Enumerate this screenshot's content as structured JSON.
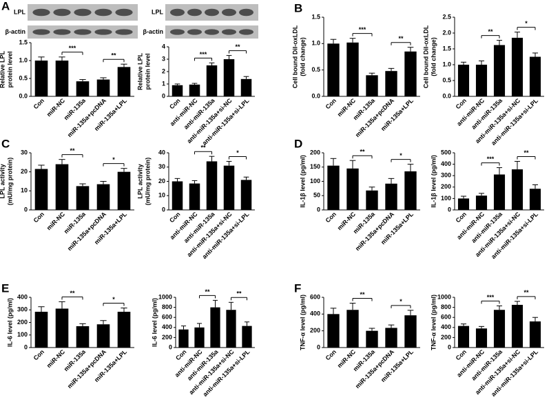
{
  "chart_data": [
    {
      "type": "bar",
      "panel": "A",
      "blot_labels": [
        "LPL",
        "β-actin"
      ],
      "ylabel": [
        "Relative LPL",
        "protein level"
      ],
      "categories": [
        "Con",
        "miR-NC",
        "miR-135a",
        "miR-135a+pcDNA",
        "miR-135a+LPL"
      ],
      "values": [
        1.0,
        1.0,
        0.42,
        0.47,
        0.82
      ],
      "errors": [
        0.1,
        0.1,
        0.05,
        0.05,
        0.08
      ],
      "ylim": [
        0,
        1.5
      ],
      "yticks": [
        {
          "value": 0,
          "label": "0.0"
        },
        0.5,
        {
          "value": 1,
          "label": "1.0"
        },
        1.5
      ],
      "annotations": [
        {
          "label": "***",
          "between": [
            "miR-NC",
            "miR-135a"
          ]
        },
        {
          "label": "**",
          "between": [
            "miR-135a+pcDNA",
            "miR-135a+LPL"
          ]
        }
      ],
      "color": "#000000"
    },
    {
      "type": "bar",
      "blot_labels": [
        "LPL",
        "β-actin"
      ],
      "ylabel": [
        "Relative LPL",
        "protein level"
      ],
      "categories": [
        "Con",
        "anti-miR-NC",
        "anti-miR-135a",
        "anti-miR-135a+si-NC",
        "anti-miR-135a+si-LPL"
      ],
      "values": [
        0.9,
        0.95,
        2.5,
        3.0,
        1.4
      ],
      "errors": [
        0.1,
        0.1,
        0.2,
        0.3,
        0.2
      ],
      "ylim": [
        0,
        4
      ],
      "yticks": [
        0,
        1,
        2,
        3,
        4
      ],
      "annotations": [
        {
          "label": "***",
          "between": [
            "anti-miR-NC",
            "anti-miR-135a"
          ]
        },
        {
          "label": "**",
          "between": [
            "anti-miR-135a+si-NC",
            "anti-miR-135a+si-LPL"
          ]
        }
      ],
      "color": "#000000"
    },
    {
      "type": "bar",
      "panel": "B",
      "ylabel": [
        "Cell bound DiI-oxLDL",
        "(fold change)"
      ],
      "categories": [
        "Con",
        "miR-NC",
        "miR-135a",
        "miR-135a+pcDNA",
        "miR-135a+LPL"
      ],
      "values": [
        1.0,
        1.02,
        0.4,
        0.48,
        0.85
      ],
      "errors": [
        0.08,
        0.08,
        0.04,
        0.05,
        0.08
      ],
      "ylim": [
        0,
        1.5
      ],
      "yticks": [
        {
          "value": 0,
          "label": "0.0"
        },
        0.5,
        {
          "value": 1,
          "label": "1.0"
        },
        1.5
      ],
      "annotations": [
        {
          "label": "***",
          "between": [
            "miR-NC",
            "miR-135a"
          ]
        },
        {
          "label": "**",
          "between": [
            "miR-135a+pcDNA",
            "miR-135a+LPL"
          ]
        }
      ],
      "color": "#000000"
    },
    {
      "type": "bar",
      "ylabel": [
        "Cell bound DiI-oxLDL",
        "(fold change)"
      ],
      "categories": [
        "Con",
        "anti-miR-NC",
        "anti-miR-135a",
        "anti-miR-135a+si-NC",
        "anti-miR-135a+si-LPL"
      ],
      "values": [
        1.0,
        1.0,
        1.62,
        1.85,
        1.25
      ],
      "errors": [
        0.08,
        0.12,
        0.15,
        0.18,
        0.12
      ],
      "ylim": [
        0,
        2.5
      ],
      "yticks": [
        {
          "value": 0,
          "label": "0.0"
        },
        0.5,
        {
          "value": 1,
          "label": "1.0"
        },
        1.5,
        {
          "value": 2,
          "label": "2.0"
        },
        2.5
      ],
      "annotations": [
        {
          "label": "**",
          "between": [
            "anti-miR-NC",
            "anti-miR-135a"
          ]
        },
        {
          "label": "*",
          "between": [
            "anti-miR-135a+si-NC",
            "anti-miR-135a+si-LPL"
          ]
        }
      ],
      "color": "#000000"
    },
    {
      "type": "bar",
      "panel": "C",
      "ylabel": [
        "LPL activity",
        "(mU/mg protein)"
      ],
      "categories": [
        "Con",
        "miR-NC",
        "miR-135a",
        "miR-135a+pcDNA",
        "miR-135a+LPL"
      ],
      "values": [
        21.5,
        24,
        12.5,
        13.5,
        20
      ],
      "errors": [
        2,
        2.5,
        1.2,
        1.5,
        1.8
      ],
      "ylim": [
        0,
        30
      ],
      "yticks": [
        0,
        10,
        20,
        30
      ],
      "annotations": [
        {
          "label": "**",
          "between": [
            "miR-NC",
            "miR-135a"
          ]
        },
        {
          "label": "*",
          "between": [
            "miR-135a+pcDNA",
            "miR-135a+LPL"
          ]
        }
      ],
      "color": "#000000"
    },
    {
      "type": "bar",
      "ylabel": [
        "LPL activity",
        "(mU/mg protein)"
      ],
      "categories": [
        "Con",
        "anti-miR-NC",
        "anti-miR-135a",
        "anti-miR-135a+si-NC",
        "anti-miR-135a+si-LPL"
      ],
      "values": [
        20,
        18.5,
        34,
        31,
        21
      ],
      "errors": [
        2,
        2,
        3.5,
        3,
        2
      ],
      "ylim": [
        0,
        40
      ],
      "yticks": [
        0,
        10,
        20,
        30,
        40
      ],
      "annotations": [
        {
          "label": "**",
          "between": [
            "anti-miR-NC",
            "anti-miR-135a"
          ]
        },
        {
          "label": "*",
          "between": [
            "anti-miR-135a+si-NC",
            "anti-miR-135a+si-LPL"
          ]
        }
      ],
      "color": "#000000"
    },
    {
      "type": "bar",
      "panel": "D",
      "ylabel": [
        "IL-1β level (pg/ml)"
      ],
      "categories": [
        "Con",
        "miR-NC",
        "miR-135a",
        "miR-135a+pcDNA",
        "miR-135a+LPL"
      ],
      "values": [
        155,
        145,
        68,
        92,
        135
      ],
      "errors": [
        25,
        28,
        12,
        18,
        25
      ],
      "ylim": [
        0,
        200
      ],
      "yticks": [
        0,
        50,
        100,
        150,
        200
      ],
      "annotations": [
        {
          "label": "**",
          "between": [
            "miR-NC",
            "miR-135a"
          ]
        },
        {
          "label": "*",
          "between": [
            "miR-135a+pcDNA",
            "miR-135a+LPL"
          ]
        }
      ],
      "color": "#000000"
    },
    {
      "type": "bar",
      "ylabel": [
        "IL-1β level (pg/ml)"
      ],
      "categories": [
        "Con",
        "anti-miR-NC",
        "anti-miR-135a",
        "anti-miR-135a+si-NC",
        "anti-miR-135a+si-LPL"
      ],
      "values": [
        100,
        125,
        310,
        355,
        185
      ],
      "errors": [
        20,
        20,
        60,
        70,
        35
      ],
      "ylim": [
        0,
        500
      ],
      "yticks": [
        0,
        100,
        200,
        300,
        400,
        500
      ],
      "annotations": [
        {
          "label": "***",
          "between": [
            "anti-miR-NC",
            "anti-miR-135a"
          ]
        },
        {
          "label": "**",
          "between": [
            "anti-miR-135a+si-NC",
            "anti-miR-135a+si-LPL"
          ]
        }
      ],
      "color": "#000000"
    },
    {
      "type": "bar",
      "panel": "E",
      "ylabel": [
        "IL-6 level (pg/ml)"
      ],
      "categories": [
        "Con",
        "miR-NC",
        "miR-135a",
        "miR-135a+pcDNA",
        "miR-135a+LPL"
      ],
      "values": [
        285,
        310,
        170,
        185,
        285
      ],
      "errors": [
        40,
        55,
        20,
        30,
        30
      ],
      "ylim": [
        0,
        400
      ],
      "yticks": [
        0,
        100,
        200,
        300,
        400
      ],
      "annotations": [
        {
          "label": "**",
          "between": [
            "miR-NC",
            "miR-135a"
          ]
        },
        {
          "label": "*",
          "between": [
            "miR-135a+pcDNA",
            "miR-135a+LPL"
          ]
        }
      ],
      "color": "#000000"
    },
    {
      "type": "bar",
      "ylabel": [
        "IL-6 level (pg/ml)"
      ],
      "categories": [
        "Con",
        "anti-miR-NC",
        "anti-miR-135a",
        "anti-miR-135a+si-NC",
        "anti-miR-135a+si-LPL"
      ],
      "values": [
        360,
        400,
        800,
        750,
        430
      ],
      "errors": [
        70,
        80,
        140,
        150,
        80
      ],
      "ylim": [
        0,
        1000
      ],
      "yticks": [
        0,
        200,
        400,
        600,
        800,
        1000
      ],
      "annotations": [
        {
          "label": "**",
          "between": [
            "anti-miR-NC",
            "anti-miR-135a"
          ]
        },
        {
          "label": "**",
          "between": [
            "anti-miR-135a+si-NC",
            "anti-miR-135a+si-LPL"
          ]
        }
      ],
      "color": "#000000"
    },
    {
      "type": "bar",
      "panel": "F",
      "ylabel": [
        "TNF-α level (pg/ml)"
      ],
      "categories": [
        "Con",
        "miR-NC",
        "miR-135a",
        "miR-135a+pcDNA",
        "miR-135a+LPL"
      ],
      "values": [
        400,
        450,
        200,
        235,
        385
      ],
      "errors": [
        70,
        80,
        30,
        35,
        60
      ],
      "ylim": [
        0,
        600
      ],
      "yticks": [
        0,
        200,
        400,
        600
      ],
      "annotations": [
        {
          "label": "**",
          "between": [
            "miR-NC",
            "miR-135a"
          ]
        },
        {
          "label": "*",
          "between": [
            "miR-135a+pcDNA",
            "miR-135a+LPL"
          ]
        }
      ],
      "color": "#000000"
    },
    {
      "type": "bar",
      "ylabel": [
        "TNF-α level (pg/ml)"
      ],
      "categories": [
        "Con",
        "anti-miR-NC",
        "anti-miR-135a",
        "anti-miR-135a+si-NC",
        "anti-miR-135a+si-LPL"
      ],
      "values": [
        430,
        380,
        750,
        850,
        520
      ],
      "errors": [
        40,
        40,
        80,
        70,
        80
      ],
      "ylim": [
        0,
        1000
      ],
      "yticks": [
        0,
        200,
        400,
        600,
        800,
        1000
      ],
      "annotations": [
        {
          "label": "***",
          "between": [
            "anti-miR-NC",
            "anti-miR-135a"
          ]
        },
        {
          "label": "**",
          "between": [
            "anti-miR-135a+si-NC",
            "anti-miR-135a+si-LPL"
          ]
        }
      ],
      "color": "#000000"
    }
  ]
}
